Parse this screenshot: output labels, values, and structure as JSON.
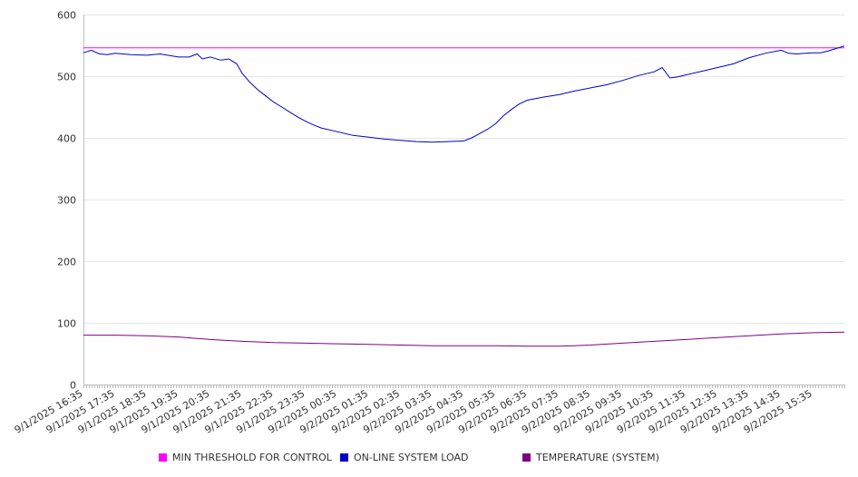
{
  "chart_data": {
    "type": "line",
    "title": "",
    "xlabel": "",
    "ylabel": "",
    "ylim": [
      0,
      600
    ],
    "yticks": [
      0,
      100,
      200,
      300,
      400,
      500,
      600
    ],
    "x_tick_labels": [
      "9/1/2025 16:35",
      "9/1/2025 17:35",
      "9/1/2025 18:35",
      "9/1/2025 19:35",
      "9/1/2025 20:35",
      "9/1/2025 21:35",
      "9/1/2025 22:35",
      "9/1/2025 23:35",
      "9/2/2025 00:35",
      "9/2/2025 01:35",
      "9/2/2025 02:35",
      "9/2/2025 03:35",
      "9/2/2025 04:35",
      "9/2/2025 05:35",
      "9/2/2025 06:35",
      "9/2/2025 07:35",
      "9/2/2025 08:35",
      "9/2/2025 09:35",
      "9/2/2025 10:35",
      "9/2/2025 11:35",
      "9/2/2025 12:35",
      "9/2/2025 13:35",
      "9/2/2025 14:35",
      "9/2/2025 15:35"
    ],
    "x_start": "9/1/2025 16:35",
    "x_end": "9/2/2025 16:35",
    "grid": true,
    "legend_position": "bottom",
    "series": [
      {
        "name": "MIN THRESHOLD FOR CONTROL",
        "color": "#ff00ff",
        "x": [
          "9/1/2025 16:35",
          "9/2/2025 16:35"
        ],
        "values": [
          546,
          546
        ]
      },
      {
        "name": "ON-LINE SYSTEM LOAD",
        "color": "#0000cc",
        "x": [
          "9/1/2025 16:35",
          "9/1/2025 16:50",
          "9/1/2025 17:05",
          "9/1/2025 17:20",
          "9/1/2025 17:35",
          "9/1/2025 18:05",
          "9/1/2025 18:35",
          "9/1/2025 19:00",
          "9/1/2025 19:35",
          "9/1/2025 19:55",
          "9/1/2025 20:10",
          "9/1/2025 20:20",
          "9/1/2025 20:35",
          "9/1/2025 20:55",
          "9/1/2025 21:10",
          "9/1/2025 21:25",
          "9/1/2025 21:35",
          "9/1/2025 21:50",
          "9/1/2025 22:05",
          "9/1/2025 22:20",
          "9/1/2025 22:35",
          "9/1/2025 22:50",
          "9/1/2025 23:05",
          "9/1/2025 23:20",
          "9/1/2025 23:35",
          "9/1/2025 23:50",
          "9/2/2025 00:05",
          "9/2/2025 00:35",
          "9/2/2025 01:05",
          "9/2/2025 01:35",
          "9/2/2025 02:05",
          "9/2/2025 02:35",
          "9/2/2025 03:05",
          "9/2/2025 03:35",
          "9/2/2025 04:05",
          "9/2/2025 04:35",
          "9/2/2025 04:50",
          "9/2/2025 05:05",
          "9/2/2025 05:20",
          "9/2/2025 05:35",
          "9/2/2025 05:50",
          "9/2/2025 06:05",
          "9/2/2025 06:20",
          "9/2/2025 06:35",
          "9/2/2025 07:05",
          "9/2/2025 07:35",
          "9/2/2025 08:05",
          "9/2/2025 08:35",
          "9/2/2025 09:05",
          "9/2/2025 09:35",
          "9/2/2025 10:05",
          "9/2/2025 10:35",
          "9/2/2025 10:50",
          "9/2/2025 11:05",
          "9/2/2025 11:20",
          "9/2/2025 11:35",
          "9/2/2025 12:05",
          "9/2/2025 12:35",
          "9/2/2025 13:05",
          "9/2/2025 13:35",
          "9/2/2025 14:05",
          "9/2/2025 14:35",
          "9/2/2025 14:50",
          "9/2/2025 15:05",
          "9/2/2025 15:20",
          "9/2/2025 15:35",
          "9/2/2025 15:50",
          "9/2/2025 16:05",
          "9/2/2025 16:20",
          "9/2/2025 16:35"
        ],
        "values": [
          538,
          542,
          536,
          535,
          537,
          535,
          534,
          536,
          531,
          531,
          536,
          528,
          531,
          526,
          528,
          520,
          505,
          490,
          478,
          468,
          458,
          450,
          442,
          434,
          427,
          421,
          416,
          410,
          404,
          401,
          398,
          396,
          394,
          393,
          394,
          395,
          400,
          407,
          414,
          423,
          436,
          446,
          455,
          461,
          466,
          470,
          476,
          481,
          486,
          493,
          501,
          507,
          514,
          497,
          499,
          502,
          508,
          514,
          520,
          530,
          537,
          542,
          537,
          536,
          537,
          538,
          538,
          541,
          545,
          549
        ]
      },
      {
        "name": "TEMPERATURE (SYSTEM)",
        "color": "#800080",
        "x": [
          "9/1/2025 16:35",
          "9/1/2025 17:35",
          "9/1/2025 18:35",
          "9/1/2025 19:35",
          "9/1/2025 20:35",
          "9/1/2025 21:35",
          "9/1/2025 22:35",
          "9/1/2025 23:35",
          "9/2/2025 00:35",
          "9/2/2025 01:35",
          "9/2/2025 02:35",
          "9/2/2025 03:35",
          "9/2/2025 04:35",
          "9/2/2025 05:35",
          "9/2/2025 06:35",
          "9/2/2025 07:35",
          "9/2/2025 08:35",
          "9/2/2025 09:35",
          "9/2/2025 10:35",
          "9/2/2025 11:35",
          "9/2/2025 12:35",
          "9/2/2025 13:35",
          "9/2/2025 14:35",
          "9/2/2025 15:35",
          "9/2/2025 16:35"
        ],
        "values": [
          80,
          80,
          79,
          77,
          73,
          70,
          68,
          67,
          66,
          65,
          64,
          63,
          63,
          63,
          62,
          62,
          64,
          67,
          70,
          73,
          76,
          79,
          82,
          84,
          85
        ]
      }
    ]
  }
}
